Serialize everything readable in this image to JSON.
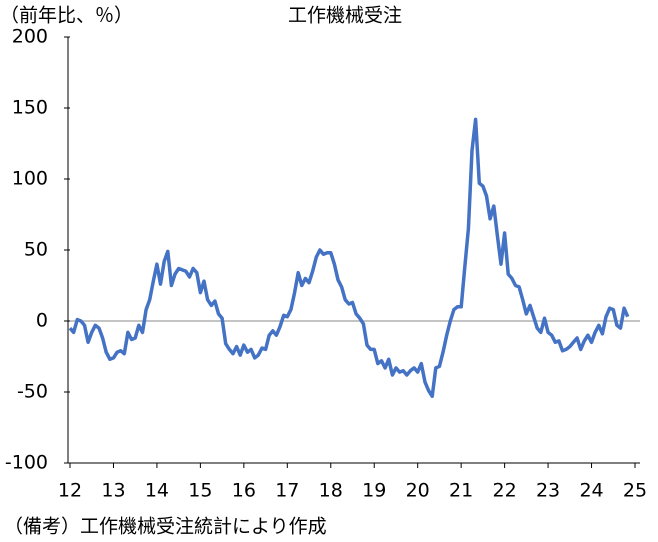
{
  "chart_data": {
    "type": "line",
    "title": "工作機械受注",
    "y_label": "（前年比、％）",
    "note": "（備考）工作機械受注統計により作成",
    "xlim": [
      12,
      25
    ],
    "xticks": [
      12,
      13,
      14,
      15,
      16,
      17,
      18,
      19,
      20,
      21,
      22,
      23,
      24,
      25
    ],
    "ylim": [
      -100,
      200
    ],
    "yticks": [
      -100,
      -50,
      0,
      50,
      100,
      150,
      200
    ],
    "x": [
      12,
      12.083,
      12.167,
      12.25,
      12.333,
      12.417,
      12.5,
      12.583,
      12.667,
      12.75,
      12.833,
      12.917,
      13,
      13.083,
      13.167,
      13.25,
      13.333,
      13.417,
      13.5,
      13.583,
      13.667,
      13.75,
      13.833,
      13.917,
      14,
      14.083,
      14.167,
      14.25,
      14.333,
      14.417,
      14.5,
      14.583,
      14.667,
      14.75,
      14.833,
      14.917,
      15,
      15.083,
      15.167,
      15.25,
      15.333,
      15.417,
      15.5,
      15.583,
      15.667,
      15.75,
      15.833,
      15.917,
      16,
      16.083,
      16.167,
      16.25,
      16.333,
      16.417,
      16.5,
      16.583,
      16.667,
      16.75,
      16.833,
      16.917,
      17,
      17.083,
      17.167,
      17.25,
      17.333,
      17.417,
      17.5,
      17.583,
      17.667,
      17.75,
      17.833,
      17.917,
      18,
      18.083,
      18.167,
      18.25,
      18.333,
      18.417,
      18.5,
      18.583,
      18.667,
      18.75,
      18.833,
      18.917,
      19,
      19.083,
      19.167,
      19.25,
      19.333,
      19.417,
      19.5,
      19.583,
      19.667,
      19.75,
      19.833,
      19.917,
      20,
      20.083,
      20.167,
      20.25,
      20.333,
      20.417,
      20.5,
      20.583,
      20.667,
      20.75,
      20.833,
      20.917,
      21,
      21.083,
      21.167,
      21.25,
      21.333,
      21.417,
      21.5,
      21.583,
      21.667,
      21.75,
      21.833,
      21.917,
      22,
      22.083,
      22.167,
      22.25,
      22.333,
      22.417,
      22.5,
      22.583,
      22.667,
      22.75,
      22.833,
      22.917,
      23,
      23.083,
      23.167,
      23.25,
      23.333,
      23.417,
      23.5,
      23.583,
      23.667,
      23.75,
      23.833,
      23.917,
      24,
      24.083,
      24.167,
      24.25,
      24.333,
      24.417,
      24.5,
      24.583,
      24.667,
      24.75,
      24.833
    ],
    "series": [
      {
        "color": "#4472c4",
        "values": [
          -5,
          -8,
          1,
          0,
          -3,
          -15,
          -8,
          -3,
          -5,
          -12,
          -22,
          -27,
          -26,
          -22,
          -21,
          -23,
          -8,
          -13,
          -12,
          -3,
          -8,
          8,
          15,
          28,
          40,
          26,
          42,
          49,
          25,
          33,
          37,
          36,
          35,
          31,
          37,
          34,
          20,
          28,
          15,
          11,
          14,
          5,
          2,
          -16,
          -20,
          -23,
          -18,
          -24,
          -17,
          -22,
          -20,
          -26,
          -24,
          -19,
          -20,
          -10,
          -7,
          -10,
          -4,
          4,
          3,
          8,
          20,
          34,
          25,
          30,
          27,
          35,
          45,
          50,
          47,
          48,
          48,
          40,
          29,
          24,
          15,
          12,
          13,
          5,
          2,
          -2,
          -17,
          -20,
          -20,
          -30,
          -28,
          -33,
          -27,
          -38,
          -33,
          -36,
          -35,
          -38,
          -35,
          -33,
          -36,
          -30,
          -43,
          -49,
          -53,
          -33,
          -32,
          -22,
          -10,
          0,
          8,
          10,
          10,
          38,
          65,
          120,
          142,
          97,
          95,
          88,
          72,
          81,
          60,
          40,
          62,
          33,
          30,
          25,
          24,
          15,
          5,
          11,
          3,
          -5,
          -8,
          2,
          -8,
          -10,
          -15,
          -14,
          -21,
          -20,
          -18,
          -15,
          -12,
          -20,
          -14,
          -10,
          -15,
          -8,
          -3,
          -9,
          3,
          9,
          8,
          -3,
          -5,
          9,
          3
        ]
      }
    ]
  }
}
